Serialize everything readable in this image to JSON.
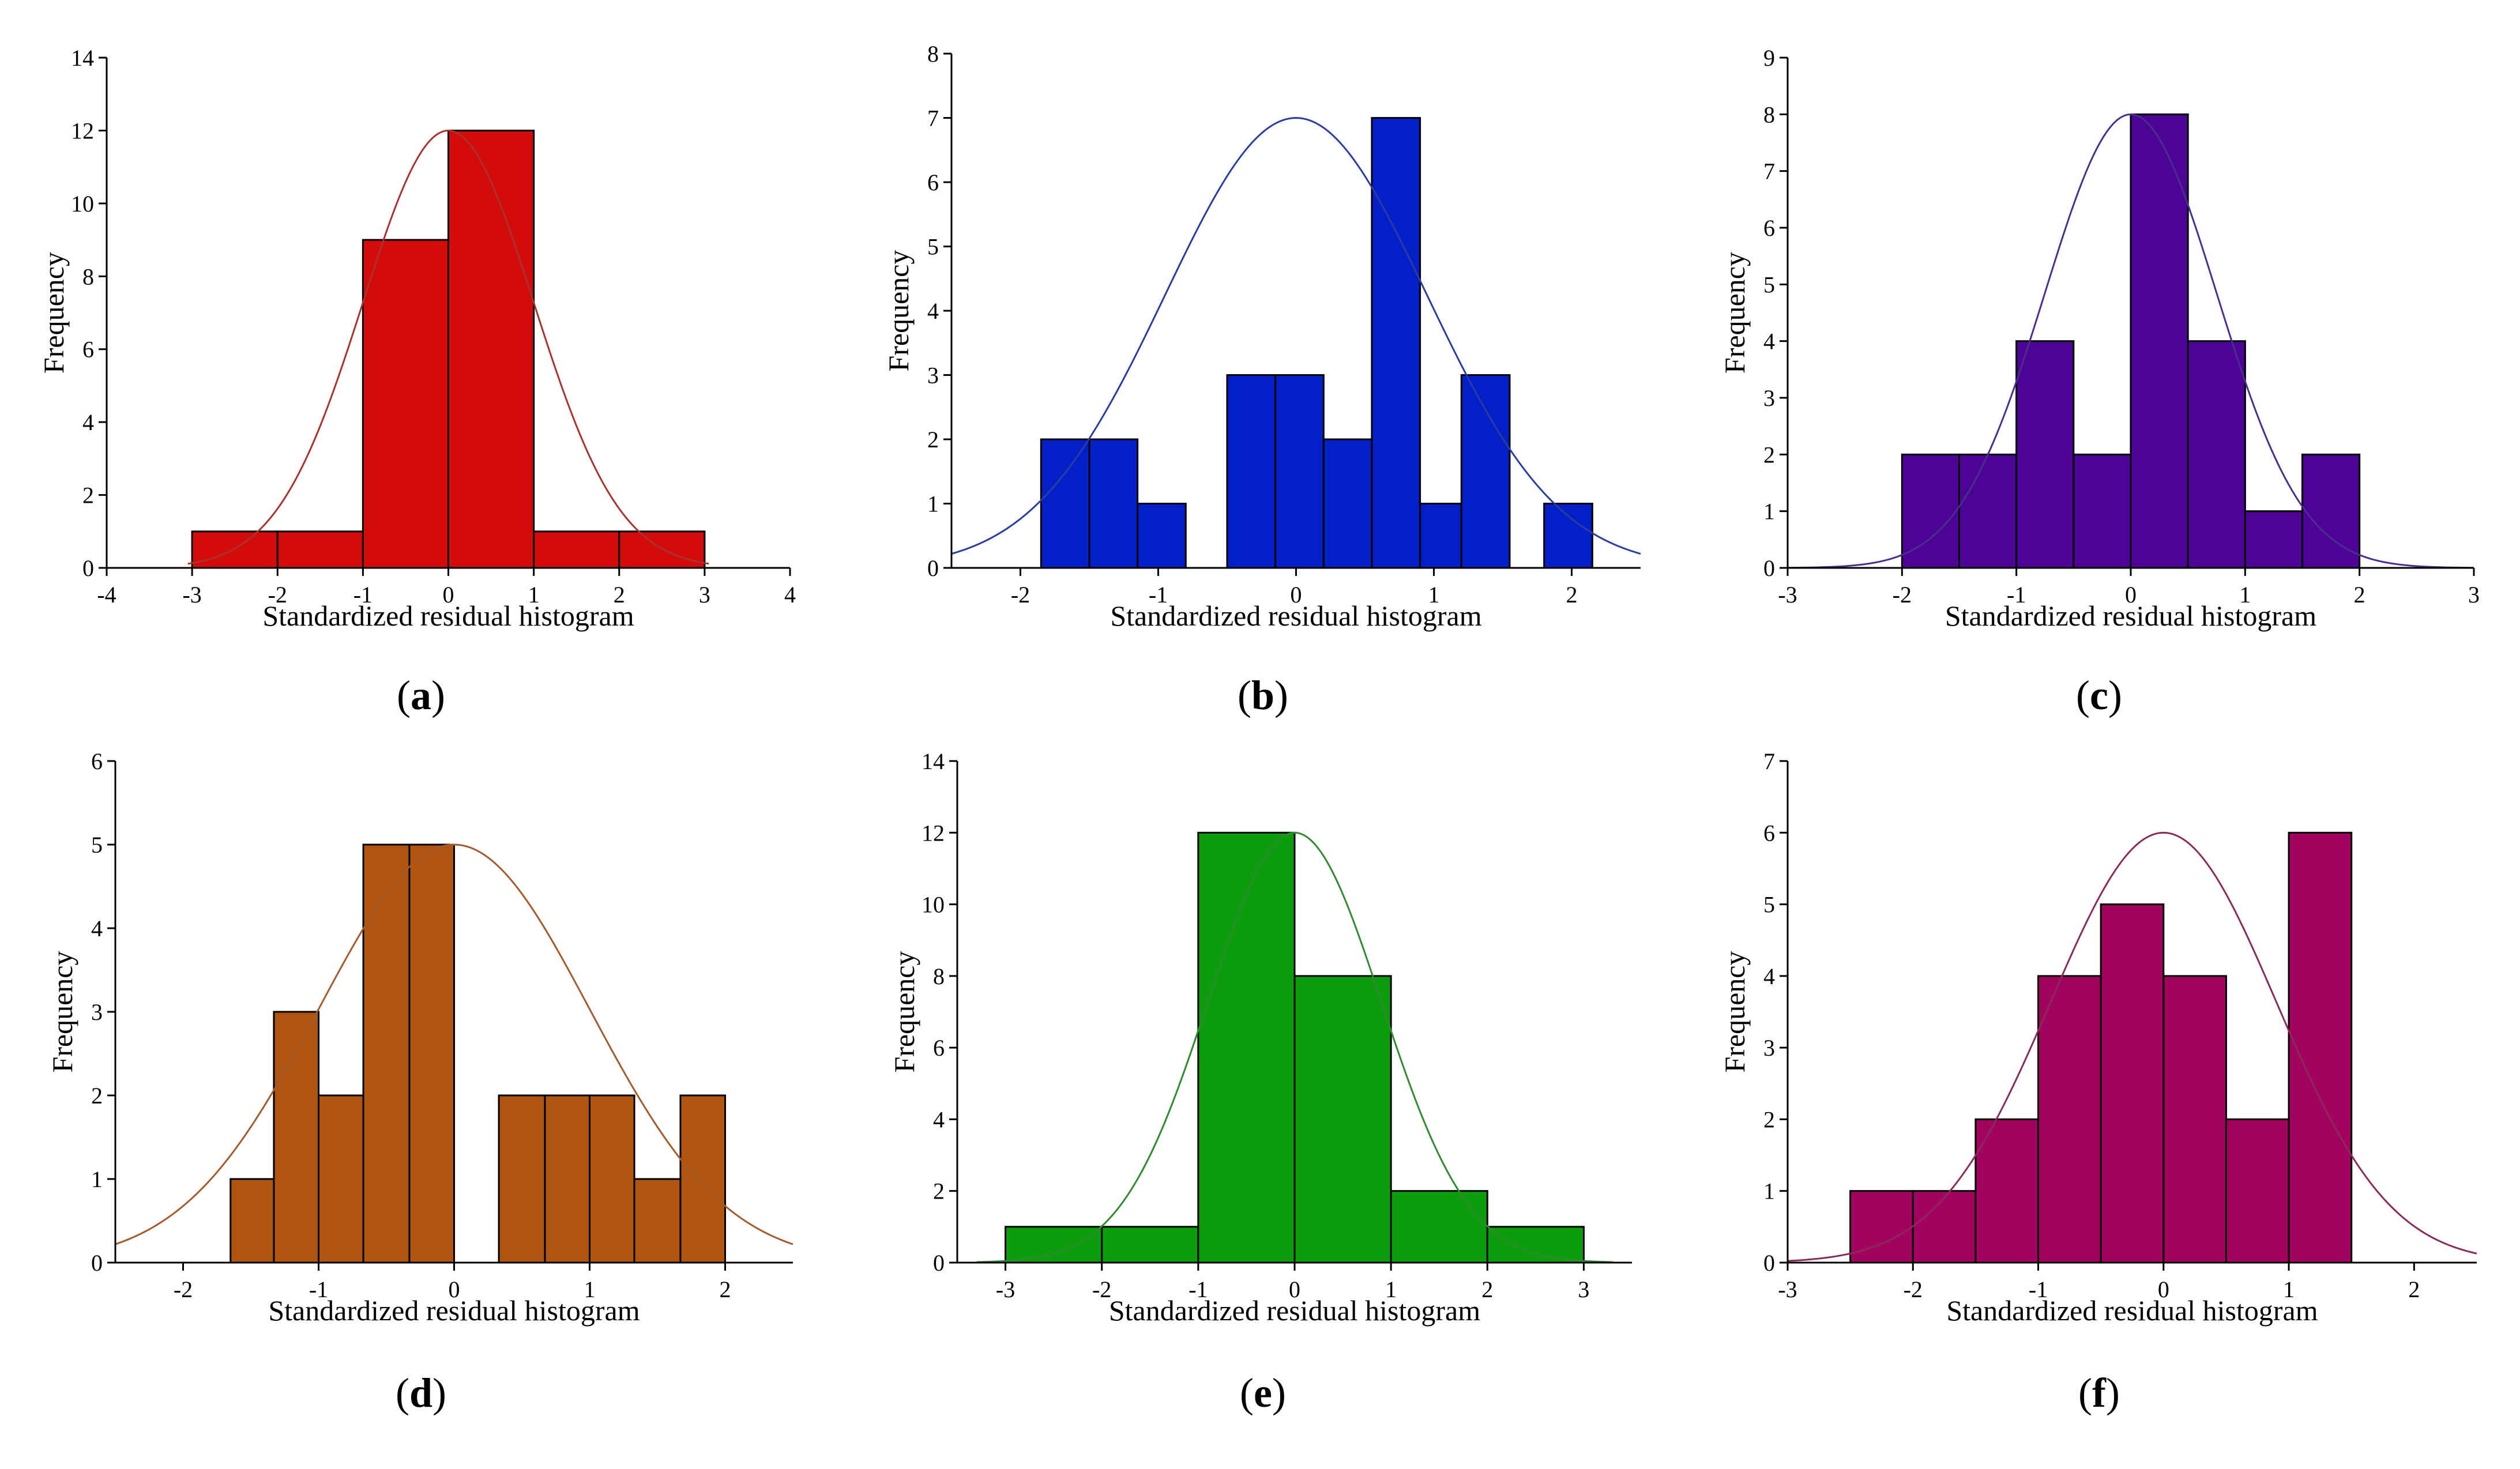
{
  "chart_data": [
    {
      "type": "bar",
      "panel": "a",
      "caption_letter": "a",
      "title": "",
      "xlabel": "Standardized residual histogram",
      "ylabel": "Frequency",
      "xlim": [
        -4,
        4
      ],
      "ylim": [
        0,
        14
      ],
      "xticks": [
        -4,
        -3,
        -2,
        -1,
        0,
        1,
        2,
        3,
        4
      ],
      "yticks": [
        0,
        2,
        4,
        6,
        8,
        10,
        12,
        14
      ],
      "color": "#d40b0b",
      "curve_color": "#a9322c",
      "bins": [
        {
          "start": -3,
          "end": -2,
          "count": 1
        },
        {
          "start": -2,
          "end": -1,
          "count": 1
        },
        {
          "start": -1,
          "end": 0,
          "count": 9
        },
        {
          "start": 0,
          "end": 1,
          "count": 12
        },
        {
          "start": 1,
          "end": 2,
          "count": 1
        },
        {
          "start": 2,
          "end": 3,
          "count": 1
        }
      ],
      "normal_curve": {
        "mean": 0,
        "sd": 1.0,
        "peak": 12,
        "x_range": [
          -3.05,
          3.05
        ]
      }
    },
    {
      "type": "bar",
      "panel": "b",
      "caption_letter": "b",
      "title": "",
      "xlabel": "Standardized residual histogram",
      "ylabel": "Frequency",
      "xlim": [
        -2.5,
        2.5
      ],
      "ylim": [
        0,
        8
      ],
      "xticks": [
        -2,
        -1,
        0,
        1,
        2
      ],
      "yticks": [
        0,
        1,
        2,
        3,
        4,
        5,
        6,
        7,
        8
      ],
      "color": "#0320c8",
      "curve_color": "#2a3ca2",
      "bins": [
        {
          "start": -1.85,
          "end": -1.5,
          "count": 2
        },
        {
          "start": -1.5,
          "end": -1.15,
          "count": 2
        },
        {
          "start": -1.15,
          "end": -0.8,
          "count": 1
        },
        {
          "start": -0.5,
          "end": -0.15,
          "count": 3
        },
        {
          "start": -0.15,
          "end": 0.2,
          "count": 3
        },
        {
          "start": 0.2,
          "end": 0.55,
          "count": 2
        },
        {
          "start": 0.55,
          "end": 0.9,
          "count": 7
        },
        {
          "start": 0.9,
          "end": 1.2,
          "count": 1
        },
        {
          "start": 1.2,
          "end": 1.55,
          "count": 3
        },
        {
          "start": 1.8,
          "end": 2.15,
          "count": 1
        }
      ],
      "normal_curve": {
        "mean": 0,
        "sd": 0.95,
        "peak": 7,
        "x_range": [
          -2.5,
          2.5
        ]
      }
    },
    {
      "type": "bar",
      "panel": "c",
      "caption_letter": "c",
      "title": "",
      "xlabel": "Standardized residual histogram",
      "ylabel": "Frequency",
      "xlim": [
        -3,
        3
      ],
      "ylim": [
        0,
        9
      ],
      "xticks": [
        -3,
        -2,
        -1,
        0,
        1,
        2,
        3
      ],
      "yticks": [
        0,
        1,
        2,
        3,
        4,
        5,
        6,
        7,
        8,
        9
      ],
      "color": "#4c0396",
      "curve_color": "#4a2e8e",
      "bins": [
        {
          "start": -2,
          "end": -1.5,
          "count": 2
        },
        {
          "start": -1.5,
          "end": -1,
          "count": 2
        },
        {
          "start": -1,
          "end": -0.5,
          "count": 4
        },
        {
          "start": -0.5,
          "end": 0,
          "count": 2
        },
        {
          "start": 0,
          "end": 0.5,
          "count": 8
        },
        {
          "start": 0.5,
          "end": 1,
          "count": 4
        },
        {
          "start": 1,
          "end": 1.5,
          "count": 1
        },
        {
          "start": 1.5,
          "end": 2,
          "count": 2
        }
      ],
      "normal_curve": {
        "mean": 0,
        "sd": 0.75,
        "peak": 8,
        "x_range": [
          -3,
          3
        ]
      }
    },
    {
      "type": "bar",
      "panel": "d",
      "caption_letter": "d",
      "title": "",
      "xlabel": "Standardized residual histogram",
      "ylabel": "Frequency",
      "xlim": [
        -2.5,
        2.5
      ],
      "ylim": [
        0,
        6
      ],
      "xticks": [
        -2,
        -1,
        0,
        1,
        2
      ],
      "yticks": [
        0,
        1,
        2,
        3,
        4,
        5,
        6
      ],
      "color": "#b05510",
      "curve_color": "#a45a2a",
      "bins": [
        {
          "start": -1.65,
          "end": -1.33,
          "count": 1
        },
        {
          "start": -1.33,
          "end": -1.0,
          "count": 3
        },
        {
          "start": -1.0,
          "end": -0.67,
          "count": 2
        },
        {
          "start": -0.67,
          "end": -0.33,
          "count": 5
        },
        {
          "start": -0.33,
          "end": 0.0,
          "count": 5
        },
        {
          "start": 0.33,
          "end": 0.67,
          "count": 2
        },
        {
          "start": 0.67,
          "end": 1.0,
          "count": 2
        },
        {
          "start": 1.0,
          "end": 1.33,
          "count": 2
        },
        {
          "start": 1.33,
          "end": 1.67,
          "count": 1
        },
        {
          "start": 1.67,
          "end": 2.0,
          "count": 2
        }
      ],
      "normal_curve": {
        "mean": 0,
        "sd": 1.0,
        "peak": 5,
        "x_range": [
          -2.5,
          2.5
        ]
      }
    },
    {
      "type": "bar",
      "panel": "e",
      "caption_letter": "e",
      "title": "",
      "xlabel": "Standardized residual histogram",
      "ylabel": "Frequency",
      "xlim": [
        -3.5,
        3.5
      ],
      "ylim": [
        0,
        14
      ],
      "xticks": [
        -3,
        -2,
        -1,
        0,
        1,
        2,
        3
      ],
      "yticks": [
        0,
        2,
        4,
        6,
        8,
        10,
        12,
        14
      ],
      "color": "#0b9d0b",
      "curve_color": "#2e8b2e",
      "bins": [
        {
          "start": -3,
          "end": -2,
          "count": 1
        },
        {
          "start": -2,
          "end": -1,
          "count": 1
        },
        {
          "start": -1,
          "end": 0,
          "count": 12
        },
        {
          "start": 0,
          "end": 1,
          "count": 8
        },
        {
          "start": 1,
          "end": 2,
          "count": 2
        },
        {
          "start": 2,
          "end": 3,
          "count": 1
        }
      ],
      "normal_curve": {
        "mean": 0,
        "sd": 0.9,
        "peak": 12,
        "x_range": [
          -3.3,
          3.3
        ]
      }
    },
    {
      "type": "bar",
      "panel": "f",
      "caption_letter": "f",
      "title": "",
      "xlabel": "Standardized residual histogram",
      "ylabel": "Frequency",
      "xlim": [
        -3,
        2.5
      ],
      "ylim": [
        0,
        7
      ],
      "xticks": [
        -3,
        -2,
        -1,
        0,
        1,
        2
      ],
      "yticks": [
        0,
        1,
        2,
        3,
        4,
        5,
        6,
        7
      ],
      "color": "#a2035f",
      "curve_color": "#8a2a5a",
      "bins": [
        {
          "start": -2.5,
          "end": -2,
          "count": 1
        },
        {
          "start": -2,
          "end": -1.5,
          "count": 1
        },
        {
          "start": -1.5,
          "end": -1,
          "count": 2
        },
        {
          "start": -1,
          "end": -0.5,
          "count": 4
        },
        {
          "start": -0.5,
          "end": 0,
          "count": 5
        },
        {
          "start": 0,
          "end": 0.5,
          "count": 4
        },
        {
          "start": 0.5,
          "end": 1,
          "count": 2
        },
        {
          "start": 1,
          "end": 1.5,
          "count": 6
        }
      ],
      "normal_curve": {
        "mean": 0,
        "sd": 0.9,
        "peak": 6,
        "x_range": [
          -3,
          2.5
        ]
      }
    }
  ]
}
